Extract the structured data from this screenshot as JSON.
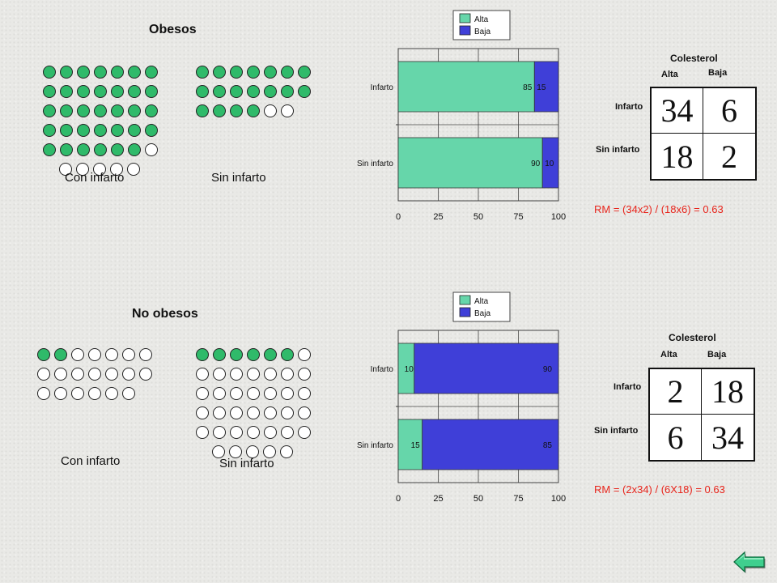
{
  "panels": [
    {
      "heading": "Obesos",
      "dots_con": {
        "label": "Con infarto",
        "rows": [
          7,
          7,
          7,
          7,
          7,
          5
        ],
        "filled": 34
      },
      "dots_sin": {
        "label": "Sin infarto",
        "rows": [
          7,
          7,
          6
        ],
        "filled": 18
      },
      "table": {
        "title": "Colesterol",
        "cols": [
          "Alta",
          "Baja"
        ],
        "rows": [
          "Infarto",
          "Sin infarto"
        ],
        "cells": [
          "34",
          "6",
          "18",
          "2"
        ]
      },
      "formula": "RM = (34x2) / (18x6) = 0.63"
    },
    {
      "heading": "No obesos",
      "dots_con": {
        "label": "Con infarto",
        "rows": [
          7,
          7,
          6
        ],
        "filled": 2
      },
      "dots_sin": {
        "label": "Sin infarto",
        "rows": [
          7,
          7,
          7,
          7,
          7,
          5
        ],
        "filled": 6
      },
      "table": {
        "title": "Colesterol",
        "cols": [
          "Alta",
          "Baja"
        ],
        "rows": [
          "Infarto",
          "Sin infarto"
        ],
        "cells": [
          "2",
          "18",
          "6",
          "34"
        ]
      },
      "formula": "RM = (2x34) / (6X18) = 0.63"
    }
  ],
  "chart_data": [
    {
      "type": "bar",
      "orientation": "horizontal",
      "stacked": true,
      "categories": [
        "Infarto",
        "Sin infarto"
      ],
      "series": [
        {
          "name": "Alta",
          "values": [
            85,
            90
          ],
          "color": "#66d6aa"
        },
        {
          "name": "Baja",
          "values": [
            15,
            10
          ],
          "color": "#3f3fd8"
        }
      ],
      "xticks": [
        "0",
        "25",
        "50",
        "75",
        "100"
      ],
      "xlim": [
        0,
        100
      ],
      "grid": true,
      "legend": "top"
    },
    {
      "type": "bar",
      "orientation": "horizontal",
      "stacked": true,
      "categories": [
        "Infarto",
        "Sin infarto"
      ],
      "series": [
        {
          "name": "Alta",
          "values": [
            10,
            15
          ],
          "color": "#66d6aa"
        },
        {
          "name": "Baja",
          "values": [
            90,
            85
          ],
          "color": "#3f3fd8"
        }
      ],
      "xticks": [
        "0",
        "25",
        "50",
        "75",
        "100"
      ],
      "xlim": [
        0,
        100
      ],
      "grid": true,
      "legend": "top"
    }
  ],
  "colors": {
    "dot_filled": "#2fba6a",
    "dot_empty": "#ffffff",
    "formula": "#e8251c"
  },
  "nav": {
    "back_icon": "left-arrow-icon"
  }
}
